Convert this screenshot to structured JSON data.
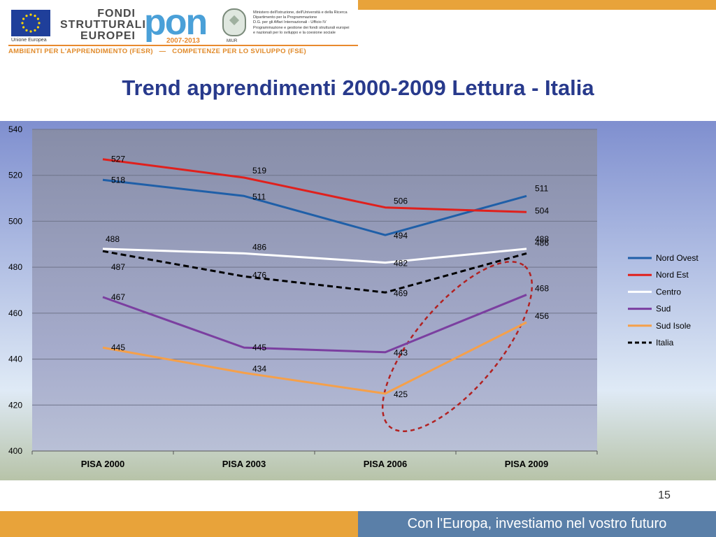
{
  "header": {
    "eu_caption": "Unione Europea",
    "fondi": "FONDI STRUTTURALI EUROPEI",
    "pon": "pon",
    "pon_years": "2007-2013",
    "miur_caption": "MIUR",
    "ministry_lines": [
      "Ministero dell'Istruzione, dell'Università e della Ricerca",
      "Dipartimento per la Programmazione",
      "D.G. per gli Affari Internazionali - Ufficio IV",
      "Programmazione e gestione dei fondi strutturali europei",
      "e nazionali per lo sviluppo e la coesione sociale"
    ],
    "banner_left": "AMBIENTI PER L'APPRENDIMENTO (FESR)",
    "banner_sep": "—",
    "banner_right": "COMPETENZE PER LO SVILUPPO (FSE)"
  },
  "title": "Trend apprendimenti 2000-2009 Lettura - Italia",
  "colors": {
    "plot_bg": "#8e95b4",
    "outer_bg_top": "#7f8fcf",
    "outer_bg_bottom": "#dfeaf6",
    "ground": "#b7c3a8",
    "highlight_ellipse": "#b22222",
    "footer_bar": "#5a7fa8",
    "orange_bar": "#e8a33a"
  },
  "chart_data": {
    "type": "line",
    "categories": [
      "PISA 2000",
      "PISA 2003",
      "PISA 2006",
      "PISA 2009"
    ],
    "ylim": [
      400,
      540
    ],
    "yticks": [
      400,
      420,
      440,
      460,
      480,
      500,
      520,
      540
    ],
    "grid": true,
    "legend_position": "right",
    "series": [
      {
        "name": "Nord Ovest",
        "values": [
          518,
          511,
          494,
          511
        ],
        "color": "#1f5fa8",
        "dash": false
      },
      {
        "name": "Nord Est",
        "values": [
          527,
          519,
          506,
          504
        ],
        "color": "#e0201c",
        "dash": false
      },
      {
        "name": "Centro",
        "values": [
          488,
          486,
          482,
          488
        ],
        "color": "#ffffff",
        "dash": false
      },
      {
        "name": "Sud",
        "values": [
          467,
          445,
          443,
          468
        ],
        "color": "#7b3fa0",
        "dash": false
      },
      {
        "name": "Sud Isole",
        "values": [
          445,
          434,
          425,
          456
        ],
        "color": "#f5a04a",
        "dash": false
      },
      {
        "name": "Italia",
        "values": [
          487,
          476,
          469,
          486
        ],
        "color": "#000000",
        "dash": true
      }
    ]
  },
  "footer": {
    "page_number": "15",
    "tagline": "Con l'Europa, investiamo nel vostro futuro"
  }
}
